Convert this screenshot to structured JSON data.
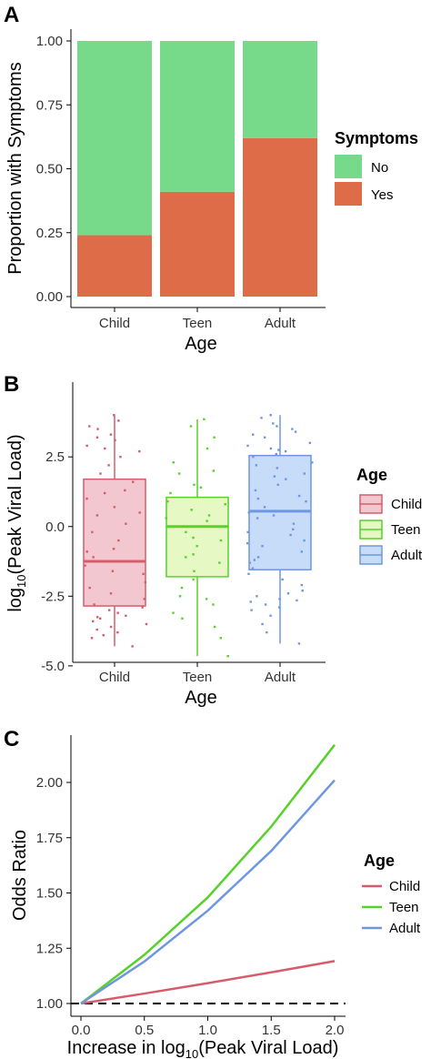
{
  "colors": {
    "no": "#77D98A",
    "yes": "#DF6C48",
    "child": "#D55D6B",
    "teen": "#57D12C",
    "adult": "#6E97E0",
    "child_fill": "#F2C7CF",
    "teen_fill": "#E6F8C4",
    "adult_fill": "#C6DCF8"
  },
  "chart_data": [
    {
      "panel": "A",
      "type": "bar",
      "stacked": true,
      "xlabel": "Age",
      "ylabel": "Proportion with Symptoms",
      "categories": [
        "Child",
        "Teen",
        "Adult"
      ],
      "ylim": [
        0,
        1
      ],
      "yticks": [
        "0.00",
        "0.25",
        "0.50",
        "0.75",
        "1.00"
      ],
      "ytick_values": [
        0,
        0.25,
        0.5,
        0.75,
        1.0
      ],
      "series": [
        {
          "name": "Yes",
          "values": [
            0.24,
            0.41,
            0.62
          ]
        },
        {
          "name": "No",
          "values": [
            0.76,
            0.59,
            0.38
          ]
        }
      ],
      "legend": {
        "title": "Symptoms",
        "entries": [
          "No",
          "Yes"
        ],
        "placement": "right"
      }
    },
    {
      "panel": "B",
      "type": "box",
      "xlabel": "Age",
      "ylabel_main": "log",
      "ylabel_sub": "10",
      "ylabel_rest": "(Peak Viral Load)",
      "categories": [
        "Child",
        "Teen",
        "Adult"
      ],
      "ylim": [
        -5.2,
        4.4
      ],
      "yticks": [
        "-5.0",
        "-2.5",
        "0.0",
        "2.5"
      ],
      "ytick_values": [
        -5.0,
        -2.5,
        0.0,
        2.5
      ],
      "boxes": [
        {
          "name": "Child",
          "min": -4.3,
          "q1": -2.85,
          "median": -1.25,
          "q3": 1.7,
          "max": 4.0
        },
        {
          "name": "Teen",
          "min": -4.65,
          "q1": -1.8,
          "median": 0.0,
          "q3": 1.05,
          "max": 3.85
        },
        {
          "name": "Adult",
          "min": -4.2,
          "q1": -1.55,
          "median": 0.55,
          "q3": 2.55,
          "max": 4.0
        }
      ],
      "points": {
        "Child": [
          4.0,
          3.8,
          3.6,
          3.5,
          3.3,
          3.1,
          2.9,
          2.7,
          2.5,
          2.2,
          1.9,
          1.6,
          1.3,
          1.0,
          0.7,
          0.4,
          0.1,
          -0.2,
          -0.5,
          -0.8,
          -1.1,
          -1.4,
          -1.7,
          -2.0,
          -2.2,
          -2.4,
          -2.6,
          -2.8,
          -3.0,
          -3.1,
          -3.2,
          -3.3,
          -3.4,
          -3.5,
          -3.6,
          -3.7,
          -3.8,
          -3.9,
          -4.0,
          -4.3,
          2.8,
          1.2,
          -0.9,
          -2.9,
          -3.25,
          0.5,
          -1.6,
          3.2
        ],
        "Teen": [
          3.85,
          3.6,
          3.2,
          2.8,
          2.3,
          1.9,
          1.5,
          1.2,
          0.9,
          0.6,
          0.4,
          0.2,
          0.0,
          -0.2,
          -0.4,
          -0.7,
          -1.0,
          -1.3,
          -1.6,
          -1.9,
          -2.2,
          -2.5,
          -2.8,
          -3.1,
          -3.3,
          -3.6,
          -4.0,
          -4.65,
          0.8,
          -0.5,
          2.0,
          -2.6,
          1.4,
          0.3,
          -1.1
        ],
        "Adult": [
          4.0,
          3.9,
          3.7,
          3.5,
          3.4,
          3.2,
          3.0,
          2.9,
          2.8,
          2.7,
          2.6,
          2.5,
          2.3,
          2.1,
          1.9,
          1.7,
          1.5,
          1.3,
          1.1,
          0.9,
          0.7,
          0.5,
          0.3,
          0.1,
          -0.1,
          -0.3,
          -0.5,
          -0.7,
          -0.9,
          -1.1,
          -1.3,
          -1.5,
          -1.7,
          -1.9,
          -2.1,
          -2.3,
          -2.5,
          -2.6,
          -2.7,
          -2.8,
          -2.9,
          -3.0,
          -3.2,
          -3.5,
          -3.8,
          -4.2,
          2.2,
          1.0,
          -0.6,
          -2.4,
          3.3,
          0.4,
          -1.2,
          2.75,
          1.8,
          -0.2,
          -2.65,
          3.6
        ]
      },
      "legend": {
        "title": "Age",
        "entries": [
          "Child",
          "Teen",
          "Adult"
        ],
        "placement": "right"
      }
    },
    {
      "panel": "C",
      "type": "line",
      "xlabel_main": "Increase in log",
      "xlabel_sub": "10",
      "xlabel_rest": "(Peak Viral Load)",
      "ylabel": "Odds Ratio",
      "xlim": [
        -0.1,
        2.1
      ],
      "ylim": [
        0.96,
        2.22
      ],
      "xticks": [
        "0.0",
        "0.5",
        "1.0",
        "1.5",
        "2.0"
      ],
      "xtick_values": [
        0,
        0.5,
        1.0,
        1.5,
        2.0
      ],
      "yticks": [
        "1.00",
        "1.25",
        "1.50",
        "1.75",
        "2.00"
      ],
      "ytick_values": [
        1.0,
        1.25,
        1.5,
        1.75,
        2.0
      ],
      "reference_line": 1.0,
      "series": [
        {
          "name": "Child",
          "x": [
            0,
            0.5,
            1.0,
            1.5,
            2.0
          ],
          "y": [
            1.0,
            1.045,
            1.092,
            1.141,
            1.192
          ]
        },
        {
          "name": "Teen",
          "x": [
            0,
            0.5,
            1.0,
            1.5,
            2.0
          ],
          "y": [
            1.0,
            1.22,
            1.48,
            1.8,
            2.17
          ]
        },
        {
          "name": "Adult",
          "x": [
            0,
            0.5,
            1.0,
            1.5,
            2.0
          ],
          "y": [
            1.0,
            1.19,
            1.42,
            1.69,
            2.01
          ]
        }
      ],
      "legend": {
        "title": "Age",
        "entries": [
          "Child",
          "Teen",
          "Adult"
        ],
        "placement": "right"
      }
    }
  ]
}
